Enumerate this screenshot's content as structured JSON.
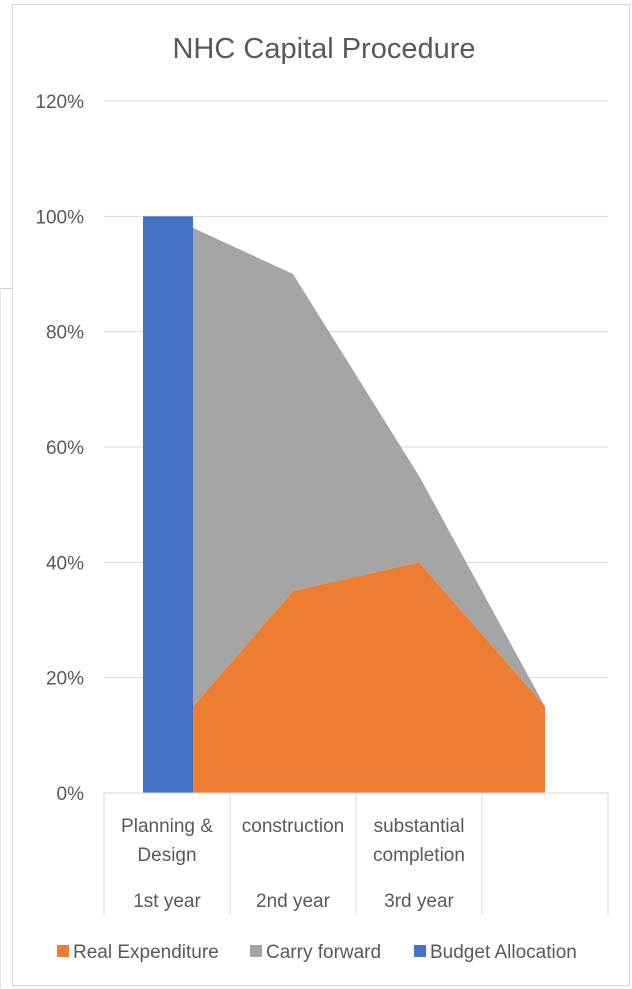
{
  "chart_data": {
    "type": "area",
    "title": "NHC Capital Procedure",
    "xlabel": "",
    "ylabel": "",
    "ylim": [
      0,
      1.2
    ],
    "yticks": [
      {
        "value": 0,
        "label": "0%"
      },
      {
        "value": 0.2,
        "label": "20%"
      },
      {
        "value": 0.4,
        "label": "40%"
      },
      {
        "value": 0.6,
        "label": "60%"
      },
      {
        "value": 0.8,
        "label": "80%"
      },
      {
        "value": 1.0,
        "label": "100%"
      },
      {
        "value": 1.2,
        "label": "120%"
      }
    ],
    "categories": [
      {
        "label_lines": [
          "Planning &",
          "Design"
        ],
        "year": "1st year"
      },
      {
        "label_lines": [
          "construction"
        ],
        "year": "2nd year"
      },
      {
        "label_lines": [
          "substantial",
          "completion"
        ],
        "year": "3rd year"
      },
      {
        "label_lines": [],
        "year": ""
      }
    ],
    "series": [
      {
        "name": "Real Expenditure",
        "kind": "area",
        "color": "#ED7D31",
        "values": [
          0.15,
          0.35,
          0.4,
          0.15
        ]
      },
      {
        "name": "Carry forward",
        "kind": "area",
        "color": "#A5A5A5",
        "values": [
          0.98,
          0.9,
          0.55,
          0.15
        ]
      },
      {
        "name": "Budget Allocation",
        "kind": "bar",
        "color": "#4472C4",
        "values": [
          1.0,
          null,
          null,
          null
        ]
      }
    ],
    "grid": true,
    "legend_position": "bottom"
  }
}
